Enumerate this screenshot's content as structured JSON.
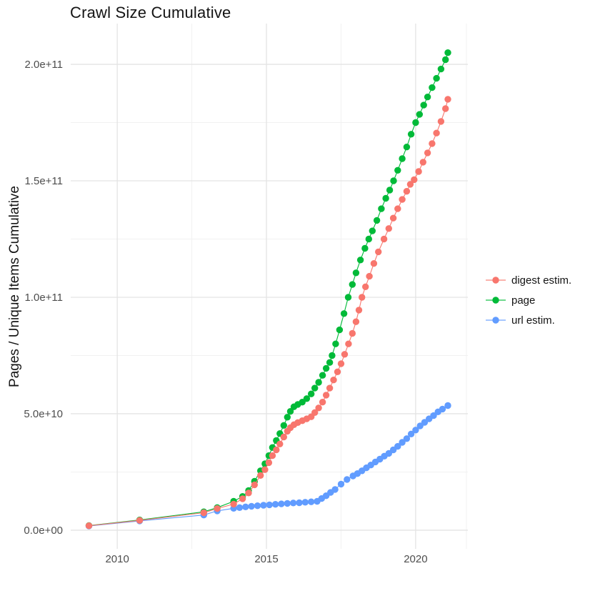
{
  "title": "Crawl Size Cumulative",
  "chart_data": {
    "type": "line-scatter",
    "title": "Crawl Size Cumulative",
    "xlabel": "",
    "ylabel": "Pages / Unique Items Cumulative",
    "values_unit": "billions (1e9)",
    "grid": true,
    "legend_position": "right",
    "xlim": [
      2008.44,
      2021.75
    ],
    "ylim_billions": [
      -8,
      217.5
    ],
    "x_ticks": [
      2010,
      2015,
      2020
    ],
    "x_tick_labels": [
      "2010",
      "2015",
      "2020"
    ],
    "x_minor_ticks": [
      2012.5,
      2017.5,
      2021.7
    ],
    "y_ticks_billions": [
      0,
      50,
      100,
      150,
      200
    ],
    "y_tick_labels": [
      "0.0e+00",
      "5.0e+10",
      "1.0e+11",
      "1.5e+11",
      "2.0e+11"
    ],
    "y_minor_ticks_billions": [
      25,
      75,
      125,
      175
    ],
    "colors": {
      "digest estim.": "#F8766D",
      "page": "#00BA38",
      "url estim.": "#619CFF",
      "grid_major": "#E4E4E4",
      "grid_minor": "#F1F1F1",
      "tick_label": "#4D4D4D"
    },
    "series": [
      {
        "name": "digest estim.",
        "color": "#F8766D",
        "points": [
          [
            2009.05,
            1.9
          ],
          [
            2010.75,
            4.2
          ],
          [
            2012.9,
            7.5
          ],
          [
            2013.35,
            9.3
          ],
          [
            2013.9,
            11.2
          ],
          [
            2014.2,
            13.5
          ],
          [
            2014.4,
            16
          ],
          [
            2014.6,
            19.5
          ],
          [
            2014.8,
            23.5
          ],
          [
            2014.95,
            26
          ],
          [
            2015.08,
            29
          ],
          [
            2015.2,
            32
          ],
          [
            2015.33,
            34.5
          ],
          [
            2015.45,
            37
          ],
          [
            2015.58,
            40
          ],
          [
            2015.7,
            42.5
          ],
          [
            2015.8,
            44
          ],
          [
            2015.92,
            45.3
          ],
          [
            2016.05,
            46.2
          ],
          [
            2016.2,
            47
          ],
          [
            2016.35,
            47.8
          ],
          [
            2016.5,
            48.7
          ],
          [
            2016.62,
            50.5
          ],
          [
            2016.75,
            52.5
          ],
          [
            2016.88,
            55
          ],
          [
            2017.0,
            58
          ],
          [
            2017.12,
            61
          ],
          [
            2017.25,
            64.5
          ],
          [
            2017.38,
            68
          ],
          [
            2017.5,
            71.5
          ],
          [
            2017.62,
            75.5
          ],
          [
            2017.75,
            80
          ],
          [
            2017.88,
            84.5
          ],
          [
            2018.0,
            89.5
          ],
          [
            2018.1,
            94.5
          ],
          [
            2018.2,
            100
          ],
          [
            2018.32,
            104.5
          ],
          [
            2018.45,
            109
          ],
          [
            2018.6,
            114.5
          ],
          [
            2018.75,
            119.5
          ],
          [
            2018.94,
            125
          ],
          [
            2019.1,
            129.5
          ],
          [
            2019.25,
            134
          ],
          [
            2019.4,
            138
          ],
          [
            2019.55,
            142
          ],
          [
            2019.7,
            145.5
          ],
          [
            2019.82,
            148.5
          ],
          [
            2019.95,
            150.5
          ],
          [
            2020.1,
            154
          ],
          [
            2020.25,
            158
          ],
          [
            2020.4,
            162
          ],
          [
            2020.55,
            166
          ],
          [
            2020.7,
            170.5
          ],
          [
            2020.85,
            175.5
          ],
          [
            2021.0,
            181
          ],
          [
            2021.08,
            185
          ]
        ]
      },
      {
        "name": "page",
        "color": "#00BA38",
        "points": [
          [
            2009.05,
            2.0
          ],
          [
            2010.75,
            4.4
          ],
          [
            2012.9,
            7.9
          ],
          [
            2013.35,
            9.7
          ],
          [
            2013.9,
            12.4
          ],
          [
            2014.2,
            14.5
          ],
          [
            2014.4,
            17
          ],
          [
            2014.6,
            21
          ],
          [
            2014.8,
            25.5
          ],
          [
            2014.95,
            28.5
          ],
          [
            2015.08,
            32
          ],
          [
            2015.2,
            35.5
          ],
          [
            2015.33,
            38.5
          ],
          [
            2015.45,
            41.5
          ],
          [
            2015.58,
            45
          ],
          [
            2015.7,
            48.5
          ],
          [
            2015.8,
            51
          ],
          [
            2015.92,
            53
          ],
          [
            2016.05,
            54
          ],
          [
            2016.2,
            55
          ],
          [
            2016.35,
            56.5
          ],
          [
            2016.5,
            58.5
          ],
          [
            2016.62,
            61
          ],
          [
            2016.75,
            63.5
          ],
          [
            2016.88,
            66.5
          ],
          [
            2017.0,
            69.5
          ],
          [
            2017.12,
            72
          ],
          [
            2017.2,
            75
          ],
          [
            2017.32,
            80
          ],
          [
            2017.45,
            86
          ],
          [
            2017.6,
            93
          ],
          [
            2017.74,
            100
          ],
          [
            2017.88,
            105.5
          ],
          [
            2018.0,
            110.5
          ],
          [
            2018.15,
            116
          ],
          [
            2018.3,
            121
          ],
          [
            2018.43,
            125
          ],
          [
            2018.55,
            128.5
          ],
          [
            2018.7,
            133
          ],
          [
            2018.85,
            138
          ],
          [
            2019.0,
            142.5
          ],
          [
            2019.13,
            146
          ],
          [
            2019.26,
            150
          ],
          [
            2019.4,
            154.5
          ],
          [
            2019.55,
            159.5
          ],
          [
            2019.7,
            164.5
          ],
          [
            2019.85,
            170
          ],
          [
            2020.0,
            175
          ],
          [
            2020.13,
            178.5
          ],
          [
            2020.27,
            182.5
          ],
          [
            2020.4,
            186
          ],
          [
            2020.55,
            190
          ],
          [
            2020.7,
            194
          ],
          [
            2020.85,
            198
          ],
          [
            2021.0,
            202
          ],
          [
            2021.08,
            205
          ]
        ]
      },
      {
        "name": "url estim.",
        "color": "#619CFF",
        "points": [
          [
            2009.05,
            1.8
          ],
          [
            2010.75,
            4.0
          ],
          [
            2012.9,
            6.5
          ],
          [
            2013.35,
            8.3
          ],
          [
            2013.9,
            9.4
          ],
          [
            2014.1,
            9.7
          ],
          [
            2014.3,
            10.0
          ],
          [
            2014.5,
            10.3
          ],
          [
            2014.7,
            10.5
          ],
          [
            2014.9,
            10.7
          ],
          [
            2015.1,
            10.9
          ],
          [
            2015.3,
            11.1
          ],
          [
            2015.5,
            11.3
          ],
          [
            2015.7,
            11.5
          ],
          [
            2015.9,
            11.7
          ],
          [
            2016.1,
            11.8
          ],
          [
            2016.3,
            12.0
          ],
          [
            2016.5,
            12.2
          ],
          [
            2016.7,
            12.4
          ],
          [
            2016.85,
            13.6
          ],
          [
            2017.0,
            14.8
          ],
          [
            2017.15,
            16.2
          ],
          [
            2017.3,
            17.5
          ],
          [
            2017.5,
            19.8
          ],
          [
            2017.7,
            21.8
          ],
          [
            2017.9,
            23.3
          ],
          [
            2018.05,
            24.3
          ],
          [
            2018.2,
            25.5
          ],
          [
            2018.35,
            26.8
          ],
          [
            2018.5,
            28
          ],
          [
            2018.65,
            29.3
          ],
          [
            2018.8,
            30.5
          ],
          [
            2018.95,
            31.8
          ],
          [
            2019.1,
            33
          ],
          [
            2019.25,
            34.5
          ],
          [
            2019.4,
            36
          ],
          [
            2019.55,
            37.7
          ],
          [
            2019.7,
            39.3
          ],
          [
            2019.85,
            41.3
          ],
          [
            2020.0,
            43
          ],
          [
            2020.15,
            44.8
          ],
          [
            2020.3,
            46.3
          ],
          [
            2020.45,
            47.8
          ],
          [
            2020.6,
            49.2
          ],
          [
            2020.75,
            50.8
          ],
          [
            2020.9,
            52
          ],
          [
            2021.08,
            53.5
          ]
        ]
      }
    ]
  }
}
